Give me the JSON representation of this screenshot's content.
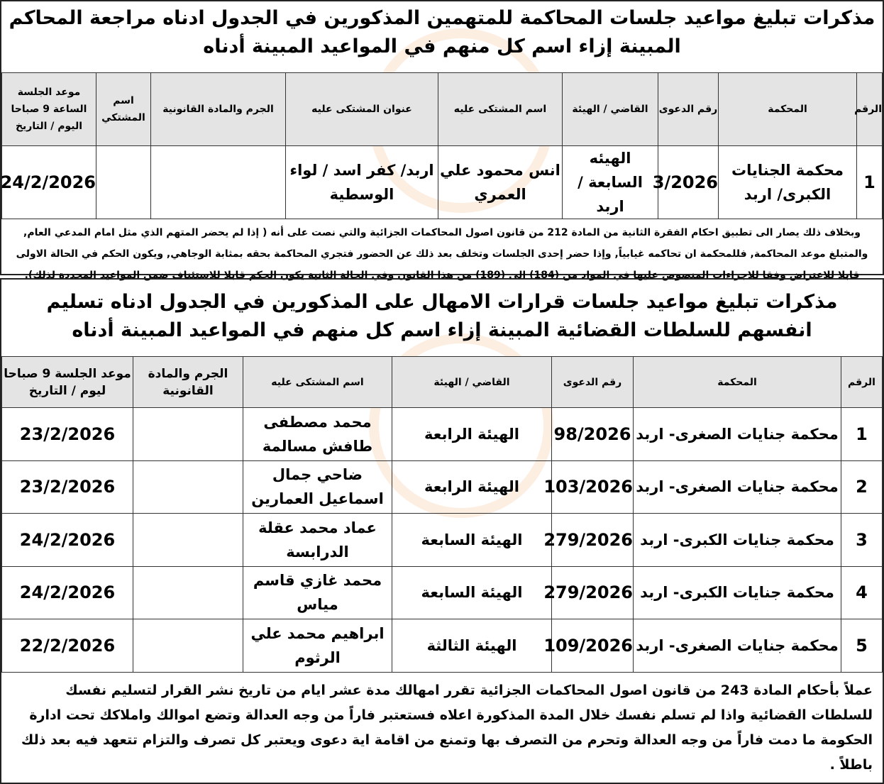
{
  "section1": {
    "title": "مذكرات تبليغ مواعيد جلسات المحاكمة للمتهمين المذكورين في الجدول ادناه مراجعة المحاكم المبينة إزاء اسم كل منهم في المواعيد المبينة أدناه",
    "headers": [
      "الرقم",
      "المحكمة",
      "رقم الدعوى",
      "القاضي / الهيئة",
      "اسم المشتكى عليه",
      "عنوان المشتكى عليه",
      "الجرم والمادة القانونية",
      "اسم المشتكي",
      "موعد الجلسة الساعة 9 صباحا اليوم / التاريخ"
    ],
    "rows": [
      {
        "no": "1",
        "court": "محكمة الجنايات الكبرى/ اربد",
        "case": "3/2026",
        "judge": "الهيئه السابعة / اربد",
        "name": "انس محمود علي العمري",
        "address": "اربد/ كفر اسد / لواء الوسطية",
        "crime": "",
        "plaintiff": "",
        "date": "24/2/2026"
      }
    ],
    "note": "وبخلاف ذلك يصار الى تطبيق احكام الفقرة الثانية من المادة 212 من قانون اصول المحاكمات الجزائية والتي نصت على أنه ( إذا لم يحضر المتهم الذي مثل امام المدعي العام, والمتبلغ موعد المحاكمة, فللمحكمة ان تحاكمه غيابياً, وإذا حضر إحدى الجلسات وتخلف بعد ذلك عن الحضور فتجري المحاكمة بحقه بمثابة الوجاهي, ويكون الحكم في الحالة الاولى قابلا للاعتراض وفقا للاجراءات المنصوص عليها في المواد من (184) الى (189) من هذا القانون وفي الحالة الثانية يكون الحكم قابلا للاستئناف ضمن المواعيد المحددة لذلك)."
  },
  "section2": {
    "title": "مذكرات تبليغ مواعيد جلسات قرارات الامهال على المذكورين في الجدول ادناه تسليم انفسهم للسلطات القضائية المبينة إزاء اسم كل منهم في المواعيد المبينة أدناه",
    "headers": [
      "الرقم",
      "المحكمة",
      "رقم الدعوى",
      "القاضي / الهيئة",
      "اسم المشتكى عليه",
      "الجرم والمادة القانونية",
      "موعد الجلسة 9 صباحا ليوم / التاريخ"
    ],
    "rows": [
      {
        "no": "1",
        "court": "محكمة جنايات الصغرى- اربد",
        "case": "98/2026",
        "judge": "الهيئة الرابعة",
        "name": "محمد مصطفى طافش مسالمة",
        "crime": "",
        "date": "23/2/2026"
      },
      {
        "no": "2",
        "court": "محكمة جنايات الصغرى- اربد",
        "case": "103/2026",
        "judge": "الهيئة الرابعة",
        "name": "ضاحي جمال اسماعيل العمارين",
        "crime": "",
        "date": "23/2/2026"
      },
      {
        "no": "3",
        "court": "محكمة جنايات الكبرى- اربد",
        "case": "279/2026",
        "judge": "الهيئة السابعة",
        "name": "عماد محمد عقلة الدرابسة",
        "crime": "",
        "date": "24/2/2026"
      },
      {
        "no": "4",
        "court": "محكمة جنايات الكبرى- اربد",
        "case": "279/2026",
        "judge": "الهيئة السابعة",
        "name": "محمد غازي قاسم مياس",
        "crime": "",
        "date": "24/2/2026"
      },
      {
        "no": "5",
        "court": "محكمة جنايات الصغرى- اربد",
        "case": "109/2026",
        "judge": "الهيئة الثالثة",
        "name": "ابراهيم محمد علي الرثوم",
        "crime": "",
        "date": "22/2/2026"
      }
    ],
    "note": "عملاً بأحكام المادة 243 من قانون اصول المحاكمات الجزائية تقرر امهالك مدة عشر ايام من تاريخ نشر القرار لتسليم نفسك للسلطات القضائية واذا لم تسلم نفسك خلال المدة المذكورة اعلاه فستعتبر فاراً من وجه العدالة وتضع اموالك واملاكك تحت ادارة الحكومة ما دمت فاراً من وجه العدالة وتحرم من التصرف بها وتمنع من اقامة اية دعوى ويعتبر كل تصرف والتزام تتعهد فيه بعد ذلك باطلاً ."
  },
  "colors": {
    "header_bg": "#e4e4e4",
    "border": "#222",
    "watermark": "#f08c3c"
  }
}
